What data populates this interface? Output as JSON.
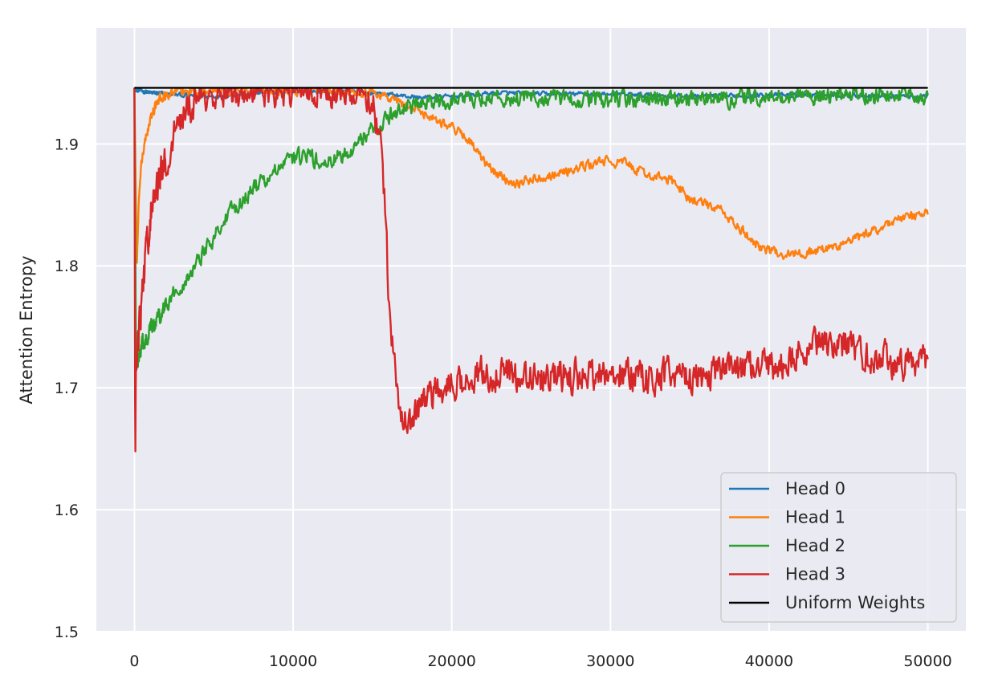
{
  "chart_data": {
    "type": "line",
    "title": "",
    "xlabel": "",
    "ylabel": "Attention Entropy",
    "xlim": [
      -2400,
      52400
    ],
    "ylim": [
      1.5,
      1.995
    ],
    "xticks": [
      0,
      10000,
      20000,
      30000,
      40000,
      50000
    ],
    "xtick_labels": [
      "0",
      "10000",
      "20000",
      "30000",
      "40000",
      "50000"
    ],
    "yticks": [
      1.5,
      1.6,
      1.7,
      1.8,
      1.9
    ],
    "ytick_labels": [
      "1.5",
      "1.6",
      "1.7",
      "1.8",
      "1.9"
    ],
    "grid": true,
    "legend_position": "lower-right",
    "series": [
      {
        "name": "Head 0",
        "color": "#1f77b4",
        "noise": 0.0015,
        "x": [
          0,
          150,
          300,
          600,
          1000,
          2000,
          3000,
          5000,
          7000,
          10000,
          12000,
          15000,
          18000,
          20000,
          23000,
          25000,
          30000,
          35000,
          40000,
          45000,
          50000
        ],
        "y": [
          1.946,
          1.943,
          1.944,
          1.943,
          1.942,
          1.941,
          1.94,
          1.939,
          1.941,
          1.943,
          1.943,
          1.942,
          1.938,
          1.939,
          1.942,
          1.941,
          1.941,
          1.939,
          1.94,
          1.94,
          1.939
        ]
      },
      {
        "name": "Head 1",
        "color": "#ff7f0e",
        "noise": 0.0035,
        "x": [
          0,
          150,
          300,
          500,
          800,
          1200,
          1600,
          2200,
          3000,
          5000,
          10000,
          14000,
          15500,
          16500,
          18000,
          20000,
          21000,
          22000,
          23000,
          24000,
          26000,
          28000,
          29500,
          31000,
          32000,
          34000,
          35000,
          37000,
          38000,
          39000,
          40000,
          41000,
          42000,
          44000,
          46000,
          48000,
          49000,
          50000
        ],
        "y": [
          1.946,
          1.8,
          1.86,
          1.89,
          1.91,
          1.928,
          1.937,
          1.941,
          1.943,
          1.944,
          1.944,
          1.944,
          1.941,
          1.935,
          1.927,
          1.914,
          1.905,
          1.885,
          1.874,
          1.868,
          1.874,
          1.88,
          1.886,
          1.884,
          1.876,
          1.869,
          1.855,
          1.845,
          1.832,
          1.82,
          1.812,
          1.81,
          1.81,
          1.815,
          1.825,
          1.838,
          1.84,
          1.843
        ]
      },
      {
        "name": "Head 2",
        "color": "#2ca02c",
        "noise": 0.006,
        "x": [
          0,
          100,
          200,
          500,
          1000,
          1500,
          2000,
          3000,
          4000,
          5000,
          6000,
          7000,
          8000,
          9000,
          10000,
          11000,
          12000,
          13000,
          14000,
          15000,
          16000,
          17000,
          18000,
          20000,
          22000,
          25000,
          30000,
          35000,
          40000,
          45000,
          50000
        ],
        "y": [
          1.946,
          1.72,
          1.725,
          1.735,
          1.748,
          1.758,
          1.768,
          1.785,
          1.805,
          1.825,
          1.842,
          1.858,
          1.868,
          1.878,
          1.888,
          1.89,
          1.882,
          1.89,
          1.9,
          1.912,
          1.922,
          1.93,
          1.932,
          1.936,
          1.938,
          1.937,
          1.936,
          1.936,
          1.938,
          1.94,
          1.94
        ]
      },
      {
        "name": "Head 3",
        "color": "#d62728",
        "noise": 0.012,
        "x": [
          0,
          50,
          100,
          200,
          400,
          600,
          800,
          1200,
          1600,
          2000,
          2500,
          3000,
          3500,
          4000,
          5000,
          10000,
          14000,
          15000,
          15500,
          15800,
          16000,
          16200,
          16500,
          17000,
          17500,
          18000,
          19000,
          20000,
          21000,
          22000,
          25000,
          28000,
          30000,
          33000,
          35000,
          38000,
          40000,
          42000,
          43000,
          44000,
          45000,
          46000,
          48000,
          50000
        ],
        "y": [
          1.946,
          1.625,
          1.72,
          1.74,
          1.76,
          1.79,
          1.82,
          1.855,
          1.87,
          1.89,
          1.91,
          1.92,
          1.93,
          1.94,
          1.944,
          1.944,
          1.944,
          1.935,
          1.9,
          1.85,
          1.78,
          1.74,
          1.7,
          1.672,
          1.675,
          1.685,
          1.695,
          1.703,
          1.71,
          1.712,
          1.708,
          1.71,
          1.712,
          1.71,
          1.708,
          1.715,
          1.718,
          1.728,
          1.735,
          1.738,
          1.732,
          1.725,
          1.722,
          1.718
        ]
      },
      {
        "name": "Uniform Weights",
        "color": "#000000",
        "noise": 0,
        "x": [
          0,
          50000
        ],
        "y": [
          1.946,
          1.946
        ]
      }
    ]
  }
}
